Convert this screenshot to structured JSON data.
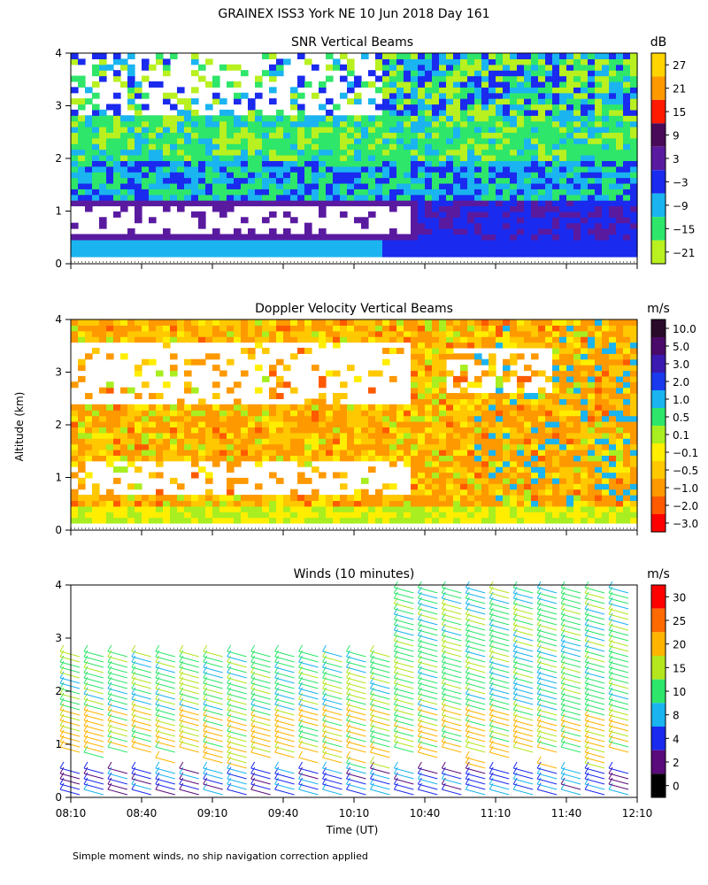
{
  "figure": {
    "title": "GRAINEX ISS3 York NE  10 Jun 2018 Day 161",
    "footnote": "Simple moment winds, no ship navigation correction applied",
    "ylabel": "Altitude (km)",
    "xlabel": "Time (UT)"
  },
  "chart_data": [
    {
      "type": "heatmap",
      "title": "SNR Vertical Beams",
      "unit": "dB",
      "x_ticks": [
        "08:10",
        "08:40",
        "09:10",
        "09:40",
        "10:10",
        "10:40",
        "11:10",
        "11:40",
        "12:10"
      ],
      "y_ticks": [
        0,
        1,
        2,
        3,
        4
      ],
      "ylim": [
        0,
        4
      ],
      "colorbar": {
        "labels": [
          "27",
          "21",
          "15",
          "9",
          "3",
          "−3",
          "−9",
          "−15",
          "−21"
        ],
        "colors": [
          "#ffd400",
          "#ff9900",
          "#ff1a00",
          "#4a0a5a",
          "#5a1aa0",
          "#1a2aee",
          "#1ab4f0",
          "#2ee66a",
          "#b8f020"
        ]
      }
    },
    {
      "type": "heatmap",
      "title": "Doppler Velocity Vertical Beams",
      "unit": "m/s",
      "x_ticks": [
        "08:10",
        "08:40",
        "09:10",
        "09:40",
        "10:10",
        "10:40",
        "11:10",
        "11:40",
        "12:10"
      ],
      "y_ticks": [
        0,
        1,
        2,
        3,
        4
      ],
      "ylim": [
        0,
        4
      ],
      "colorbar": {
        "labels": [
          "10.0",
          "5.0",
          "3.0",
          "2.0",
          "1.0",
          "0.5",
          "0.1",
          "−0.1",
          "−0.5",
          "−1.0",
          "−2.0",
          "−3.0"
        ],
        "colors": [
          "#2a0a2a",
          "#4a0a6a",
          "#3a1ab0",
          "#1a3aee",
          "#1ab4f0",
          "#2ee66a",
          "#a8ee20",
          "#ffee00",
          "#ffc800",
          "#ff9900",
          "#ff5a00",
          "#ff0000"
        ]
      }
    },
    {
      "type": "scatter",
      "title": "Winds (10 minutes)",
      "unit": "m/s",
      "x_ticks": [
        "08:10",
        "08:40",
        "09:10",
        "09:40",
        "10:10",
        "10:40",
        "11:10",
        "11:40",
        "12:10"
      ],
      "y_ticks": [
        0,
        1,
        2,
        3,
        4
      ],
      "ylim": [
        0,
        4
      ],
      "colorbar": {
        "labels": [
          "30",
          "25",
          "20",
          "15",
          "10",
          "8",
          "4",
          "2",
          "0"
        ],
        "colors": [
          "#ff0000",
          "#ff6a00",
          "#ffb400",
          "#b4e61e",
          "#2ee66a",
          "#1ab4f0",
          "#1a2aee",
          "#5a0a7a",
          "#000000"
        ]
      }
    }
  ]
}
